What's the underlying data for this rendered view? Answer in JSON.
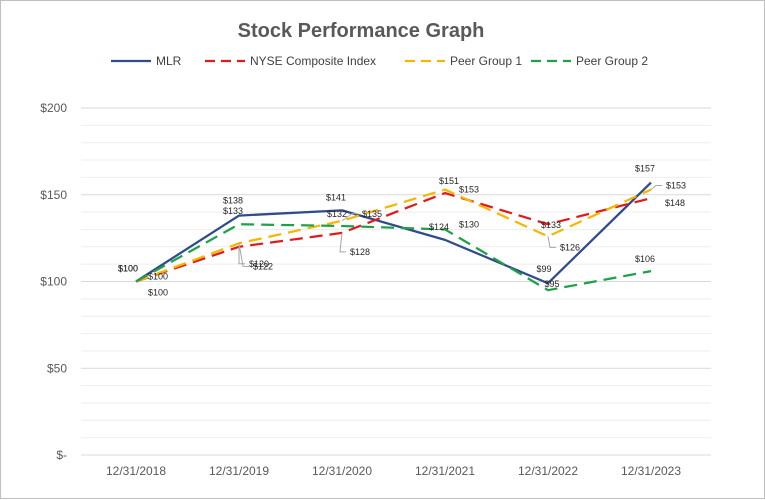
{
  "chart_data": {
    "type": "line",
    "title": "Stock Performance Graph",
    "xlabel": "",
    "ylabel": "",
    "categories": [
      "12/31/2018",
      "12/31/2019",
      "12/31/2020",
      "12/31/2021",
      "12/31/2022",
      "12/31/2023"
    ],
    "ylim": [
      0,
      200
    ],
    "yticks": [
      {
        "value": 0,
        "label": "$-"
      },
      {
        "value": 50,
        "label": "$50"
      },
      {
        "value": 100,
        "label": "$100"
      },
      {
        "value": 150,
        "label": "$150"
      },
      {
        "value": 200,
        "label": "$200"
      }
    ],
    "grid": true,
    "legend_position": "top",
    "series": [
      {
        "name": "MLR",
        "color": "#2f4b8a",
        "dash": "solid",
        "values": [
          100,
          138,
          141,
          124,
          99,
          157
        ]
      },
      {
        "name": "NYSE Composite Index",
        "color": "#e01b1b",
        "dash": "dashed",
        "values": [
          100,
          120,
          128,
          151,
          133,
          148
        ]
      },
      {
        "name": "Peer Group 1",
        "color": "#f5b700",
        "dash": "dashed",
        "values": [
          100,
          122,
          135,
          153,
          126,
          153
        ]
      },
      {
        "name": "Peer Group 2",
        "color": "#1fa14a",
        "dash": "dashed",
        "values": [
          100,
          133,
          132,
          130,
          95,
          106
        ]
      }
    ],
    "data_labels": [
      {
        "series": "MLR",
        "index": 0,
        "text": "$100"
      },
      {
        "series": "MLR",
        "index": 1,
        "text": "$138"
      },
      {
        "series": "MLR",
        "index": 2,
        "text": "$141"
      },
      {
        "series": "MLR",
        "index": 3,
        "text": "$124"
      },
      {
        "series": "MLR",
        "index": 4,
        "text": "$99"
      },
      {
        "series": "MLR",
        "index": 5,
        "text": "$157"
      },
      {
        "series": "NYSE Composite Index",
        "index": 0,
        "text": "$100"
      },
      {
        "series": "NYSE Composite Index",
        "index": 1,
        "text": "$120"
      },
      {
        "series": "NYSE Composite Index",
        "index": 2,
        "text": "$128"
      },
      {
        "series": "NYSE Composite Index",
        "index": 3,
        "text": "$151"
      },
      {
        "series": "NYSE Composite Index",
        "index": 4,
        "text": "$133"
      },
      {
        "series": "NYSE Composite Index",
        "index": 5,
        "text": "$148"
      },
      {
        "series": "Peer Group 1",
        "index": 0,
        "text": "$100"
      },
      {
        "series": "Peer Group 1",
        "index": 1,
        "text": "$122"
      },
      {
        "series": "Peer Group 1",
        "index": 2,
        "text": "$135"
      },
      {
        "series": "Peer Group 1",
        "index": 3,
        "text": "$153"
      },
      {
        "series": "Peer Group 1",
        "index": 4,
        "text": "$126"
      },
      {
        "series": "Peer Group 1",
        "index": 5,
        "text": "$153"
      },
      {
        "series": "Peer Group 2",
        "index": 0,
        "text": "$100"
      },
      {
        "series": "Peer Group 2",
        "index": 1,
        "text": "$133"
      },
      {
        "series": "Peer Group 2",
        "index": 2,
        "text": "$132"
      },
      {
        "series": "Peer Group 2",
        "index": 3,
        "text": "$130"
      },
      {
        "series": "Peer Group 2",
        "index": 4,
        "text": "$95"
      },
      {
        "series": "Peer Group 2",
        "index": 5,
        "text": "$106"
      }
    ]
  }
}
